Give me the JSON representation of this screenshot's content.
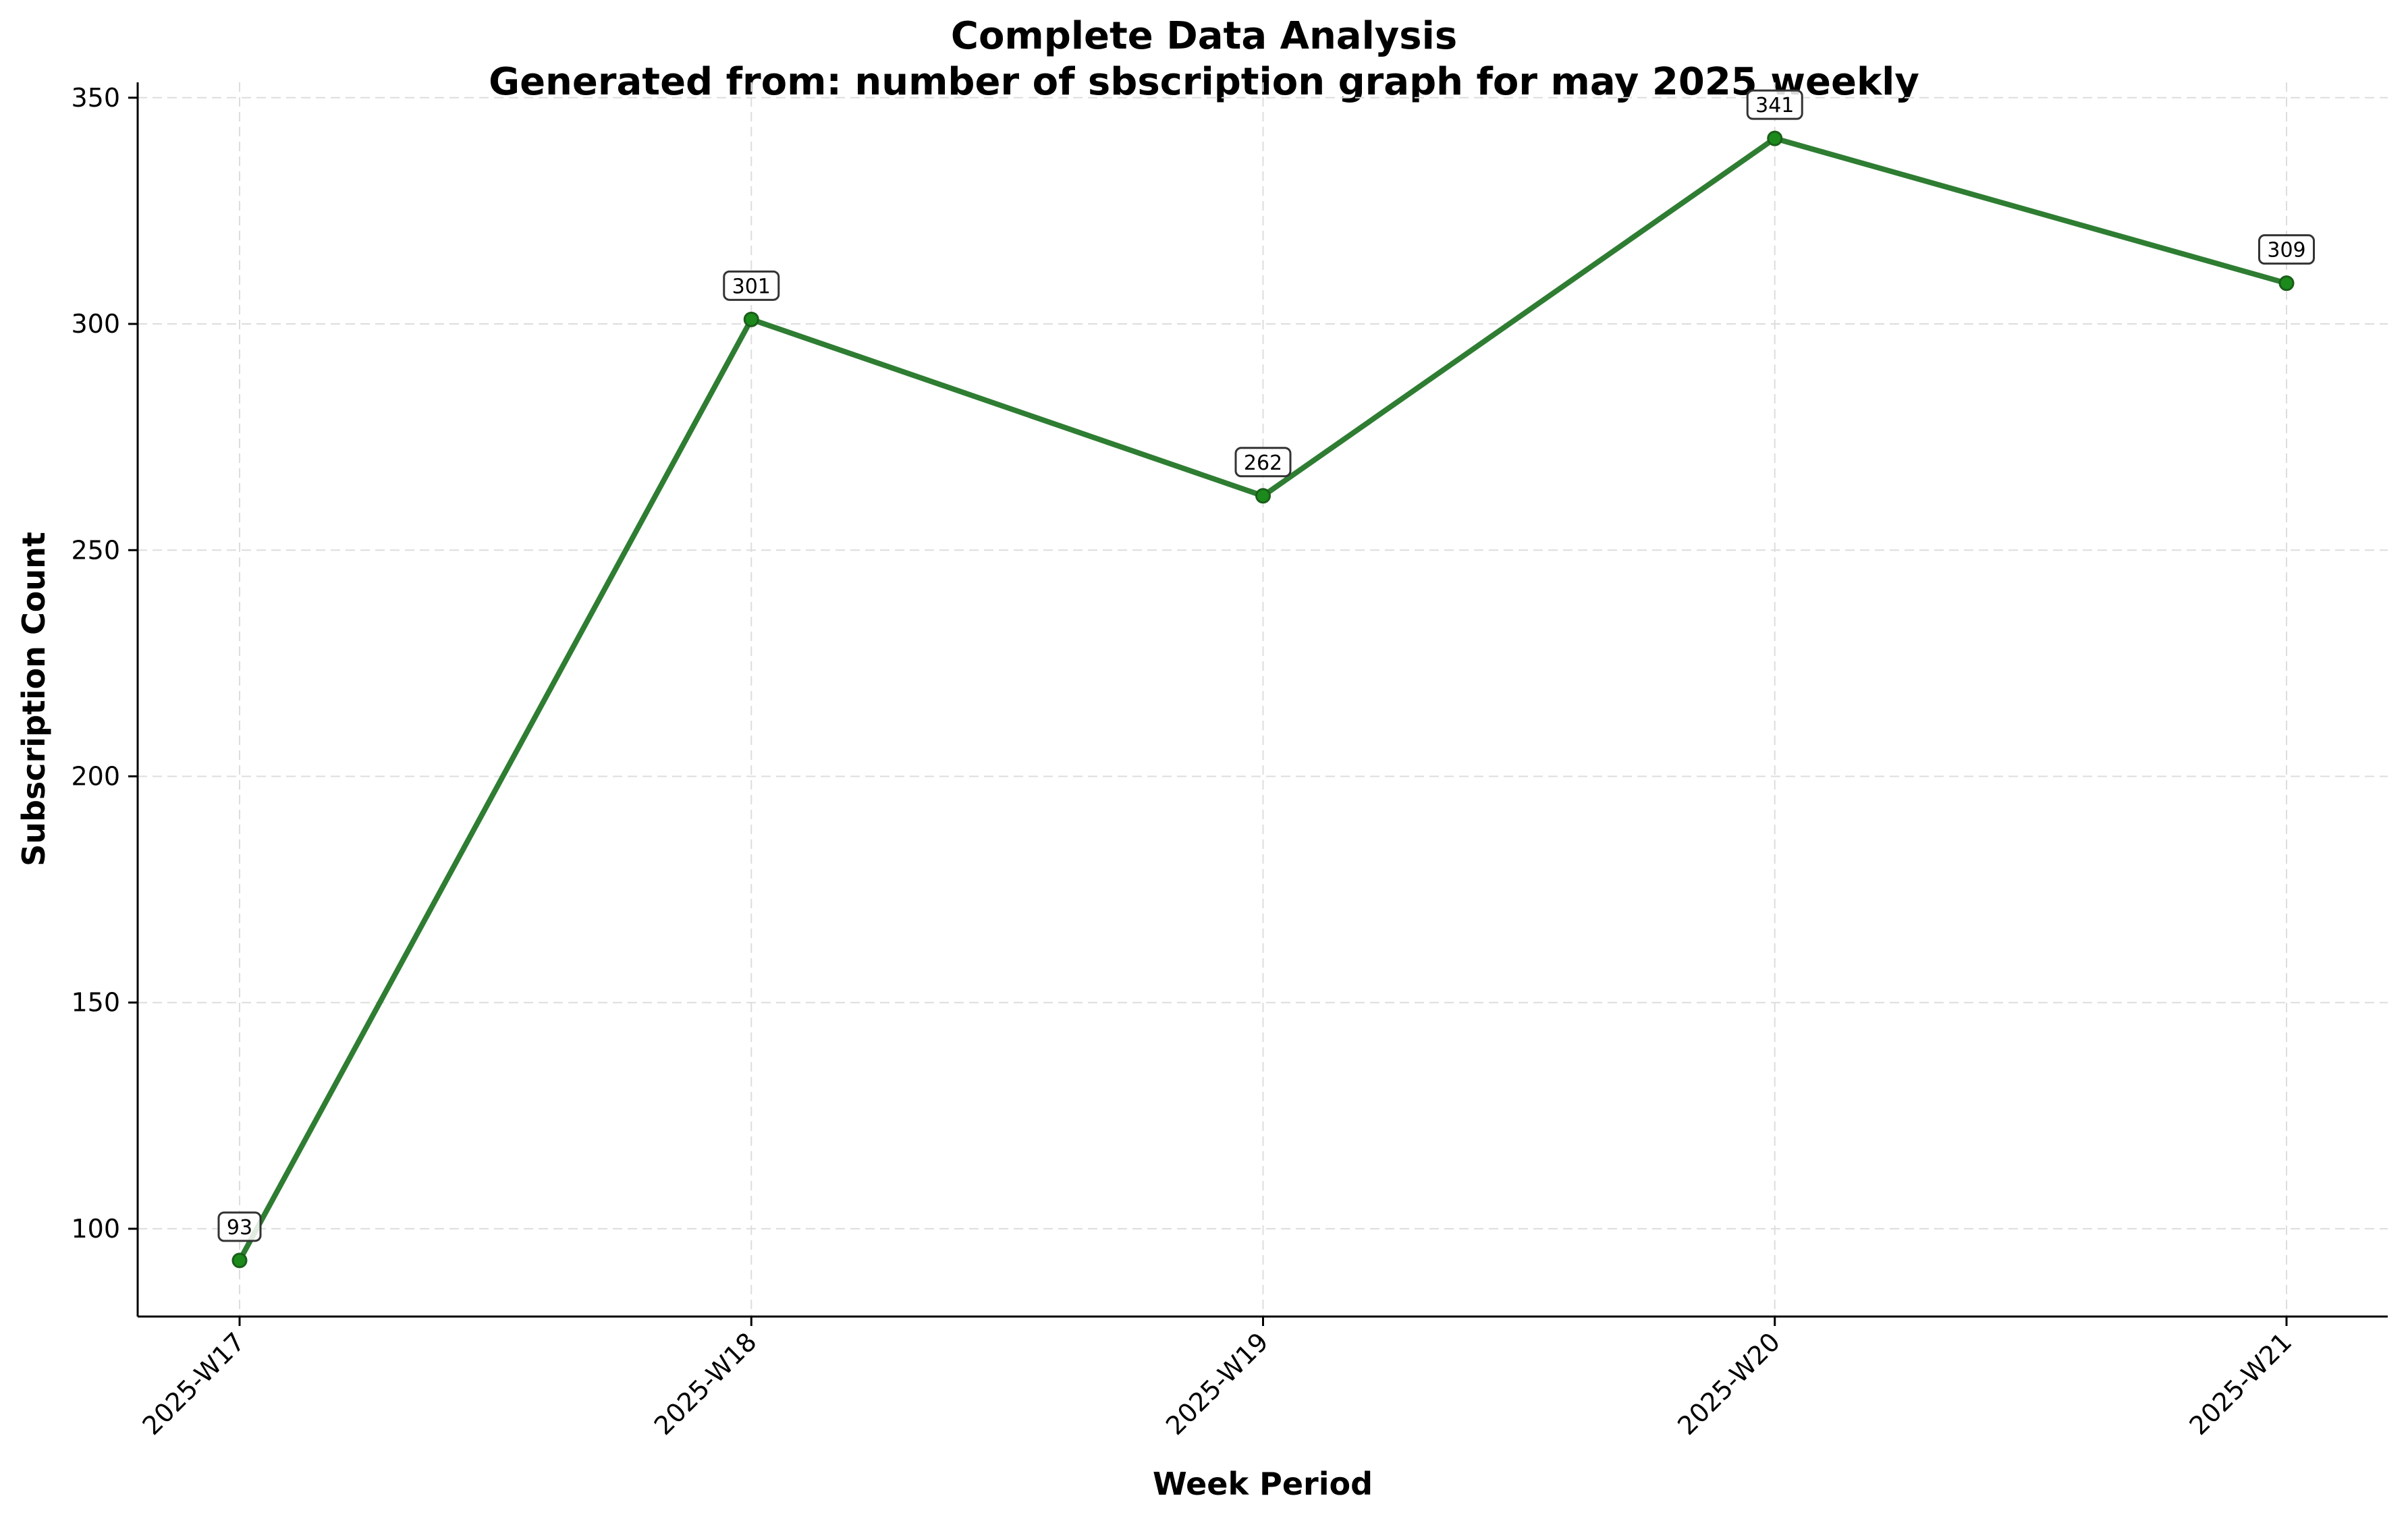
{
  "chart_data": {
    "type": "line",
    "title": "Complete Data Analysis",
    "subtitle": "Generated from: number of sbscription graph for may 2025 weekly",
    "xlabel": "Week Period",
    "ylabel": "Subscription Count",
    "categories": [
      "2025-W17",
      "2025-W18",
      "2025-W19",
      "2025-W20",
      "2025-W21"
    ],
    "series": [
      {
        "values": [
          93,
          301,
          262,
          341,
          309
        ],
        "color": "#2e7d32"
      }
    ],
    "data_labels": [
      "93",
      "301",
      "262",
      "341",
      "309"
    ],
    "yticks": [
      100,
      150,
      200,
      250,
      300,
      350
    ],
    "ylim": [
      80.6,
      353.4
    ],
    "grid": true,
    "x_tick_rotation_deg": 45,
    "colors": {
      "line": "#2e7d32",
      "marker": "#1b8a1b",
      "grid": "#dddddd",
      "axis": "#000000"
    }
  }
}
